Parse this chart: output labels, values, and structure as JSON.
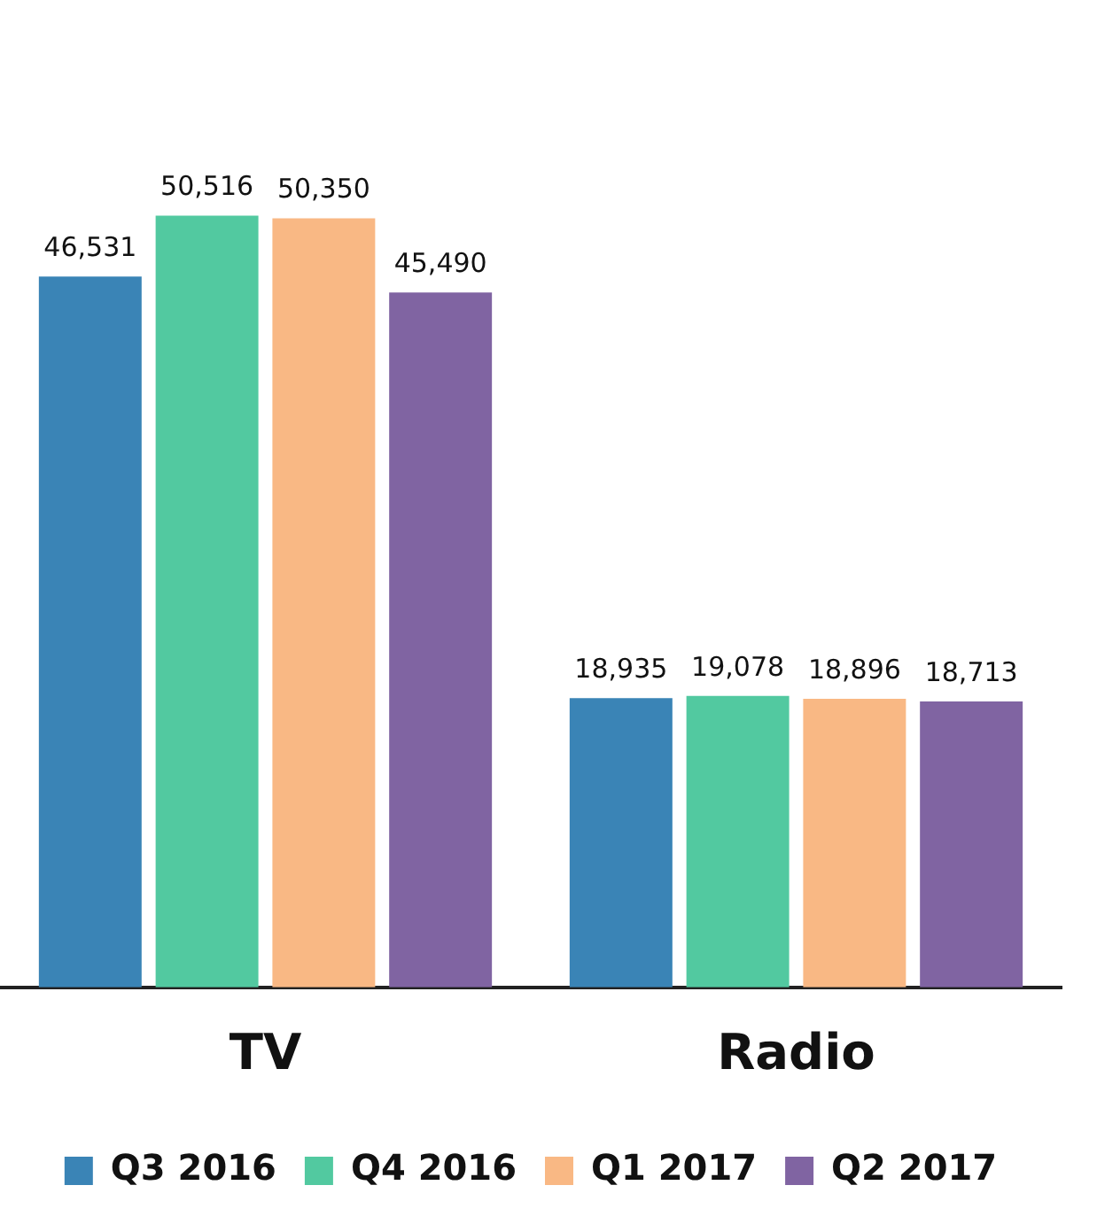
{
  "chart_data": {
    "type": "bar",
    "categories": [
      "TV",
      "Radio"
    ],
    "series": [
      {
        "name": "Q3 2016",
        "color": "#3a84b6",
        "values": [
          46531,
          18935
        ],
        "value_labels": [
          "46,531",
          "18,935"
        ]
      },
      {
        "name": "Q4 2016",
        "color": "#52c9a0",
        "values": [
          50516,
          19078
        ],
        "value_labels": [
          "50,516",
          "19,078"
        ]
      },
      {
        "name": "Q1 2017",
        "color": "#f9b884",
        "values": [
          50350,
          18896
        ],
        "value_labels": [
          "50,350",
          "18,896"
        ]
      },
      {
        "name": "Q2 2017",
        "color": "#8064a2",
        "values": [
          45490,
          18713
        ],
        "value_labels": [
          "45,490",
          "18,713"
        ]
      }
    ],
    "grid": false,
    "legend": "bottom",
    "tick_labels": "x"
  }
}
